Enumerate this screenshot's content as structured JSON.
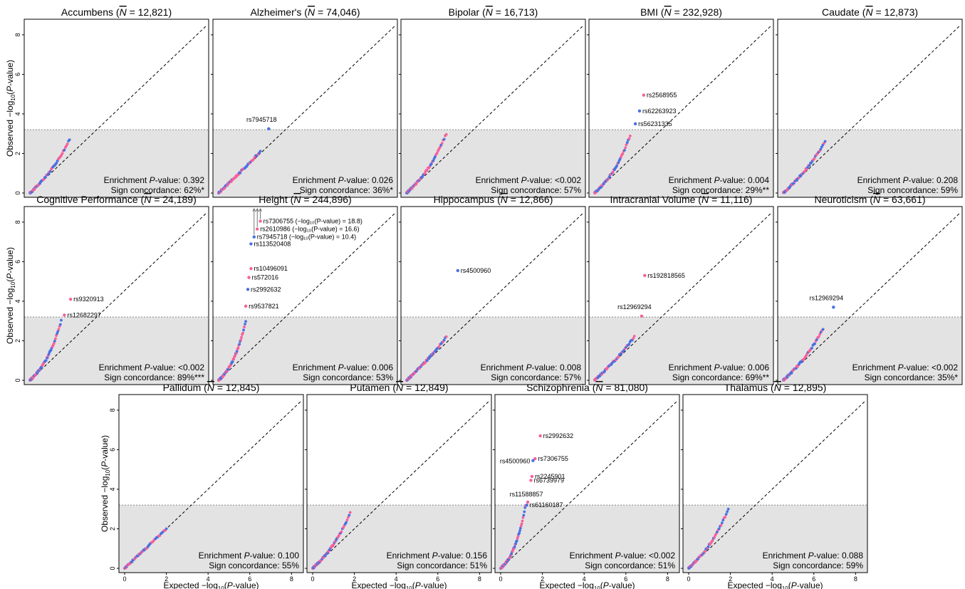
{
  "figure": {
    "xlabel_pre": "Expected  −log",
    "xlabel_sub": "10",
    "xlabel_post": "(P-value)",
    "ylabel_pre": "Observed  −log",
    "ylabel_sub": "10",
    "ylabel_post": "(P-value)",
    "enrich_prefix": "Enrichment ",
    "enrich_italic": "P",
    "enrich_mid": "-value: ",
    "sign_prefix": "Sign concordance: ",
    "nbar_prefix": " (",
    "nbar_symbol": "N",
    "nbar_mid": " = ",
    "nbar_suffix": ")",
    "colors": {
      "pink": "#f4609c",
      "blue": "#4a70e0",
      "shade": "#e3e3e3",
      "threshold_line": "#888888"
    }
  },
  "chart_data": [
    {
      "type": "scatter",
      "name": "Accumbens",
      "n": "12,821",
      "enrichment": "0.392",
      "sign": "62%*",
      "xlim": [
        0,
        8.5
      ],
      "ylim": [
        0,
        8.5
      ],
      "threshold": 3.2,
      "xticks": [
        "0",
        "2",
        "4",
        "6",
        "8"
      ],
      "yticks": [
        "0",
        "2",
        "4",
        "6",
        "8"
      ],
      "max_x": 1.9,
      "max_y": 2.7,
      "bend": 1.2,
      "labels": [],
      "extra_points": []
    },
    {
      "type": "scatter",
      "name": "Alzheimer's",
      "n": "74,046",
      "enrichment": "0.026",
      "sign": "36%*",
      "xlim": [
        0,
        8.5
      ],
      "ylim": [
        0,
        8.5
      ],
      "threshold": 3.2,
      "xticks": [
        "0",
        "2",
        "4",
        "6",
        "8"
      ],
      "yticks": [
        "0",
        "2",
        "4",
        "6",
        "8"
      ],
      "max_x": 2.0,
      "max_y": 2.1,
      "bend": 1.5,
      "labels": [
        {
          "text": "rs7945718",
          "x": 2.4,
          "y": 3.25,
          "color": "blue",
          "dx": -10,
          "dy": -10,
          "anchor": "middle"
        }
      ],
      "extra_points": []
    },
    {
      "type": "scatter",
      "name": "Bipolar",
      "n": "16,713",
      "enrichment": "<0.002",
      "sign": "57%",
      "xlim": [
        0,
        8.5
      ],
      "ylim": [
        0,
        8.5
      ],
      "threshold": 3.2,
      "xticks": [
        "0",
        "2",
        "4",
        "6",
        "8"
      ],
      "yticks": [
        "0",
        "2",
        "4",
        "6",
        "8"
      ],
      "max_x": 1.9,
      "max_y": 3.0,
      "bend": 1.2,
      "labels": [],
      "extra_points": []
    },
    {
      "type": "scatter",
      "name": "BMI",
      "n": "232,928",
      "enrichment": "0.004",
      "sign": "29%**",
      "xlim": [
        0,
        8.5
      ],
      "ylim": [
        0,
        8.5
      ],
      "threshold": 3.2,
      "xticks": [
        "0",
        "2",
        "4",
        "6",
        "8"
      ],
      "yticks": [
        "0",
        "2",
        "4",
        "6",
        "8"
      ],
      "max_x": 1.7,
      "max_y": 2.9,
      "bend": 1.3,
      "labels": [
        {
          "text": "rs2568955",
          "x": 2.35,
          "y": 4.95,
          "color": "pink",
          "dx": 4,
          "dy": 3,
          "anchor": "start"
        },
        {
          "text": "rs62263923",
          "x": 2.15,
          "y": 4.15,
          "color": "blue",
          "dx": 4,
          "dy": 3,
          "anchor": "start"
        },
        {
          "text": "rs56231335",
          "x": 1.95,
          "y": 3.5,
          "color": "blue",
          "dx": 4,
          "dy": 3,
          "anchor": "start"
        }
      ],
      "extra_points": []
    },
    {
      "type": "scatter",
      "name": "Caudate",
      "n": "12,873",
      "enrichment": "0.208",
      "sign": "59%",
      "xlim": [
        0,
        8.5
      ],
      "ylim": [
        0,
        8.5
      ],
      "threshold": 3.2,
      "xticks": [
        "0",
        "2",
        "4",
        "6",
        "8"
      ],
      "yticks": [
        "0",
        "2",
        "4",
        "6",
        "8"
      ],
      "max_x": 2.0,
      "max_y": 2.6,
      "bend": 1.2,
      "labels": [],
      "extra_points": []
    },
    {
      "type": "scatter",
      "name": "Cognitive Performance",
      "n": "24,189",
      "enrichment": "<0.002",
      "sign": "89%***",
      "xlim": [
        0,
        8.5
      ],
      "ylim": [
        0,
        8.5
      ],
      "threshold": 3.2,
      "xticks": [
        "0",
        "2",
        "4",
        "6",
        "8"
      ],
      "yticks": [
        "0",
        "2",
        "4",
        "6",
        "8"
      ],
      "max_x": 1.5,
      "max_y": 3.0,
      "bend": 1.1,
      "labels": [
        {
          "text": "rs9320913",
          "x": 1.95,
          "y": 4.1,
          "color": "pink",
          "dx": 4,
          "dy": 3,
          "anchor": "start"
        },
        {
          "text": "rs12682297",
          "x": 1.65,
          "y": 3.3,
          "color": "pink",
          "dx": 4,
          "dy": 3,
          "anchor": "start"
        }
      ],
      "extra_points": []
    },
    {
      "type": "scatter",
      "name": "Height",
      "n": "244,896",
      "enrichment": "0.006",
      "sign": "53%",
      "xlim": [
        0,
        8.5
      ],
      "ylim": [
        0,
        8.5
      ],
      "threshold": 3.2,
      "xticks": [
        "0",
        "2",
        "4",
        "6",
        "8"
      ],
      "yticks": [
        "0",
        "2",
        "4",
        "6",
        "8"
      ],
      "max_x": 1.3,
      "max_y": 3.0,
      "bend": 0.9,
      "labels": [
        {
          "text": "rs7306755 (−log₁₀(P-value) = 18.8)",
          "x": 2.0,
          "y": 8.05,
          "color": "pink",
          "dx": 4,
          "dy": 3,
          "anchor": "start"
        },
        {
          "text": "rs2610986 (−log₁₀(P-value) = 16.6)",
          "x": 1.85,
          "y": 7.65,
          "color": "pink",
          "dx": 4,
          "dy": 3,
          "anchor": "start"
        },
        {
          "text": "rs7945718 (−log₁₀(P-value) = 10.4)",
          "x": 1.7,
          "y": 7.25,
          "color": "blue",
          "dx": 4,
          "dy": 3,
          "anchor": "start"
        },
        {
          "text": "rs113520408",
          "x": 1.55,
          "y": 6.9,
          "color": "blue",
          "dx": 4,
          "dy": 3,
          "anchor": "start"
        },
        {
          "text": "rs10496091",
          "x": 1.55,
          "y": 5.65,
          "color": "pink",
          "dx": 4,
          "dy": 3,
          "anchor": "start"
        },
        {
          "text": "rs572016",
          "x": 1.45,
          "y": 5.2,
          "color": "pink",
          "dx": 4,
          "dy": 3,
          "anchor": "start"
        },
        {
          "text": "rs2992632",
          "x": 1.4,
          "y": 4.6,
          "color": "blue",
          "dx": 4,
          "dy": 3,
          "anchor": "start"
        },
        {
          "text": "rs9537821",
          "x": 1.3,
          "y": 3.75,
          "color": "pink",
          "dx": 4,
          "dy": 3,
          "anchor": "start"
        }
      ],
      "extra_points": []
    },
    {
      "type": "scatter",
      "name": "Hippocampus",
      "n": "12,866",
      "enrichment": "0.008",
      "sign": "57%",
      "xlim": [
        0,
        8.5
      ],
      "ylim": [
        0,
        8.5
      ],
      "threshold": 3.2,
      "xticks": [
        "0",
        "2",
        "4",
        "6",
        "8"
      ],
      "yticks": [
        "0",
        "2",
        "4",
        "6",
        "8"
      ],
      "max_x": 1.9,
      "max_y": 2.2,
      "bend": 1.5,
      "labels": [
        {
          "text": "rs4500960",
          "x": 2.45,
          "y": 5.55,
          "color": "blue",
          "dx": 4,
          "dy": 3,
          "anchor": "start"
        }
      ],
      "extra_points": []
    },
    {
      "type": "scatter",
      "name": "Intracranial Volume",
      "n": "11,116",
      "enrichment": "0.006",
      "sign": "69%**",
      "xlim": [
        0,
        8.5
      ],
      "ylim": [
        0,
        8.5
      ],
      "threshold": 3.2,
      "xticks": [
        "0",
        "2",
        "4",
        "6",
        "8"
      ],
      "yticks": [
        "0",
        "2",
        "4",
        "6",
        "8"
      ],
      "max_x": 1.9,
      "max_y": 2.2,
      "bend": 1.4,
      "labels": [
        {
          "text": "rs192818565",
          "x": 2.4,
          "y": 5.3,
          "color": "pink",
          "dx": 4,
          "dy": 3,
          "anchor": "start"
        },
        {
          "text": "rs12969294",
          "x": 2.25,
          "y": 3.25,
          "color": "pink",
          "dx": -10,
          "dy": -10,
          "anchor": "middle"
        }
      ],
      "extra_points": []
    },
    {
      "type": "scatter",
      "name": "Neuroticism",
      "n": "63,661",
      "enrichment": "<0.002",
      "sign": "35%*",
      "xlim": [
        0,
        8.5
      ],
      "ylim": [
        0,
        8.5
      ],
      "threshold": 3.2,
      "xticks": [
        "0",
        "2",
        "4",
        "6",
        "8"
      ],
      "yticks": [
        "0",
        "2",
        "4",
        "6",
        "8"
      ],
      "max_x": 1.9,
      "max_y": 2.6,
      "bend": 1.4,
      "labels": [
        {
          "text": "rs12969294",
          "x": 2.4,
          "y": 3.7,
          "color": "blue",
          "dx": -10,
          "dy": -10,
          "anchor": "middle"
        }
      ],
      "extra_points": []
    },
    {
      "type": "scatter",
      "name": "Pallidum",
      "n": "12,845",
      "enrichment": "0.100",
      "sign": "55%",
      "xlim": [
        0,
        8.5
      ],
      "ylim": [
        0,
        8.5
      ],
      "threshold": 3.2,
      "xticks": [
        "0",
        "2",
        "4",
        "6",
        "8"
      ],
      "yticks": [
        "0",
        "2",
        "4",
        "6",
        "8"
      ],
      "max_x": 2.0,
      "max_y": 2.0,
      "bend": 1.5,
      "labels": [],
      "extra_points": []
    },
    {
      "type": "scatter",
      "name": "Putamen",
      "n": "12,849",
      "enrichment": "0.156",
      "sign": "51%",
      "xlim": [
        0,
        8.5
      ],
      "ylim": [
        0,
        8.5
      ],
      "threshold": 3.2,
      "xticks": [
        "0",
        "2",
        "4",
        "6",
        "8"
      ],
      "yticks": [
        "0",
        "2",
        "4",
        "6",
        "8"
      ],
      "max_x": 1.8,
      "max_y": 2.8,
      "bend": 1.3,
      "labels": [],
      "extra_points": []
    },
    {
      "type": "scatter",
      "name": "Schizophrenia",
      "n": "81,080",
      "enrichment": "<0.002",
      "sign": "51%",
      "xlim": [
        0,
        8.5
      ],
      "ylim": [
        0,
        8.5
      ],
      "threshold": 3.2,
      "xticks": [
        "0",
        "2",
        "4",
        "6",
        "8"
      ],
      "yticks": [
        "0",
        "2",
        "4",
        "6",
        "8"
      ],
      "max_x": 1.2,
      "max_y": 3.2,
      "bend": 0.85,
      "labels": [
        {
          "text": "rs2992632",
          "x": 1.9,
          "y": 6.7,
          "color": "pink",
          "dx": 4,
          "dy": 3,
          "anchor": "start"
        },
        {
          "text": "rs7306755",
          "x": 1.65,
          "y": 5.55,
          "color": "pink",
          "dx": 4,
          "dy": 3,
          "anchor": "start"
        },
        {
          "text": "rs4500960",
          "x": 1.55,
          "y": 5.45,
          "color": "blue",
          "dx": -4,
          "dy": 4,
          "anchor": "end"
        },
        {
          "text": "rs2245901",
          "x": 1.5,
          "y": 4.65,
          "color": "pink",
          "dx": 4,
          "dy": 3,
          "anchor": "start"
        },
        {
          "text": "rs6739979",
          "x": 1.45,
          "y": 4.45,
          "color": "pink",
          "dx": 4,
          "dy": 3,
          "anchor": "start"
        },
        {
          "text": "rs11588857",
          "x": 1.3,
          "y": 3.35,
          "color": "pink",
          "dx": -2,
          "dy": -8,
          "anchor": "middle"
        },
        {
          "text": "rs61160187",
          "x": 1.25,
          "y": 3.2,
          "color": "blue",
          "dx": 4,
          "dy": 3,
          "anchor": "start"
        }
      ],
      "extra_points": []
    },
    {
      "type": "scatter",
      "name": "Thalamus",
      "n": "12,895",
      "enrichment": "0.088",
      "sign": "59%",
      "xlim": [
        0,
        8.5
      ],
      "ylim": [
        0,
        8.5
      ],
      "threshold": 3.2,
      "xticks": [
        "0",
        "2",
        "4",
        "6",
        "8"
      ],
      "yticks": [
        "0",
        "2",
        "4",
        "6",
        "8"
      ],
      "max_x": 1.9,
      "max_y": 3.0,
      "bend": 1.3,
      "labels": [],
      "extra_points": []
    }
  ]
}
